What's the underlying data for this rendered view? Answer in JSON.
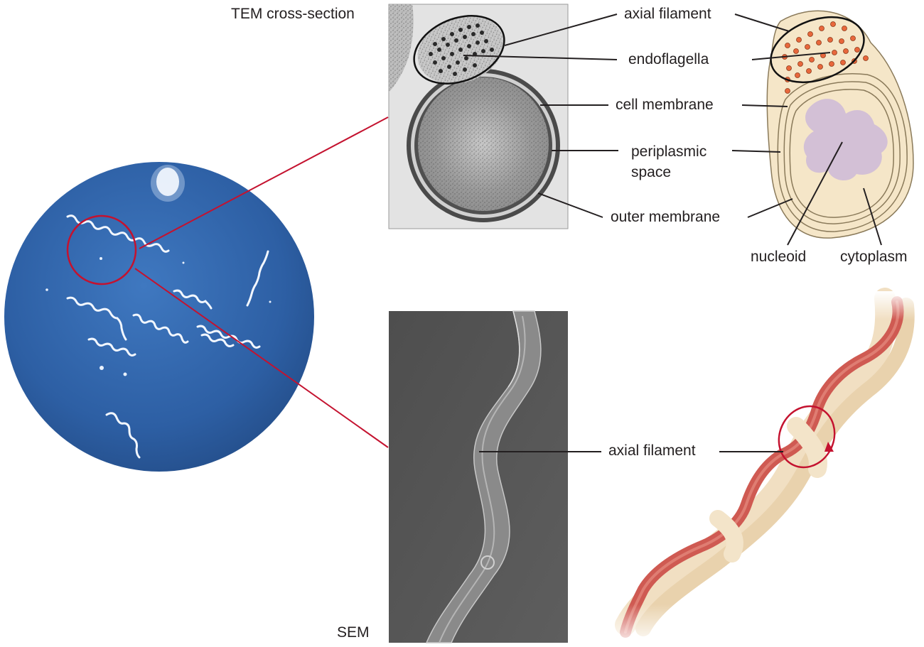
{
  "panels": {
    "tem_label": "TEM cross-section",
    "sem_label": "SEM"
  },
  "labels": {
    "axial_filament_top": "axial filament",
    "endoflagella": "endoflagella",
    "cell_membrane": "cell membrane",
    "periplasmic_line1": "periplasmic",
    "periplasmic_line2": "space",
    "outer_membrane": "outer membrane",
    "nucleoid": "nucleoid",
    "cytoplasm": "cytoplasm",
    "axial_filament_bottom": "axial filament"
  },
  "colors": {
    "micrograph_blue": "#2f62a8",
    "leader_red": "#c4122f",
    "cell_tan": "#f5e6c8",
    "cell_outline": "#8a7a5a",
    "nucleoid_purple": "#cdb8d8",
    "endoflagella_orange": "#e8673c",
    "filament_red": "#cf5a52",
    "sheath_cream": "#f1dfc2",
    "sem_gray": "#5a5a5a"
  },
  "icons": {
    "rotation_arrow": "rotation-arrow-icon"
  }
}
